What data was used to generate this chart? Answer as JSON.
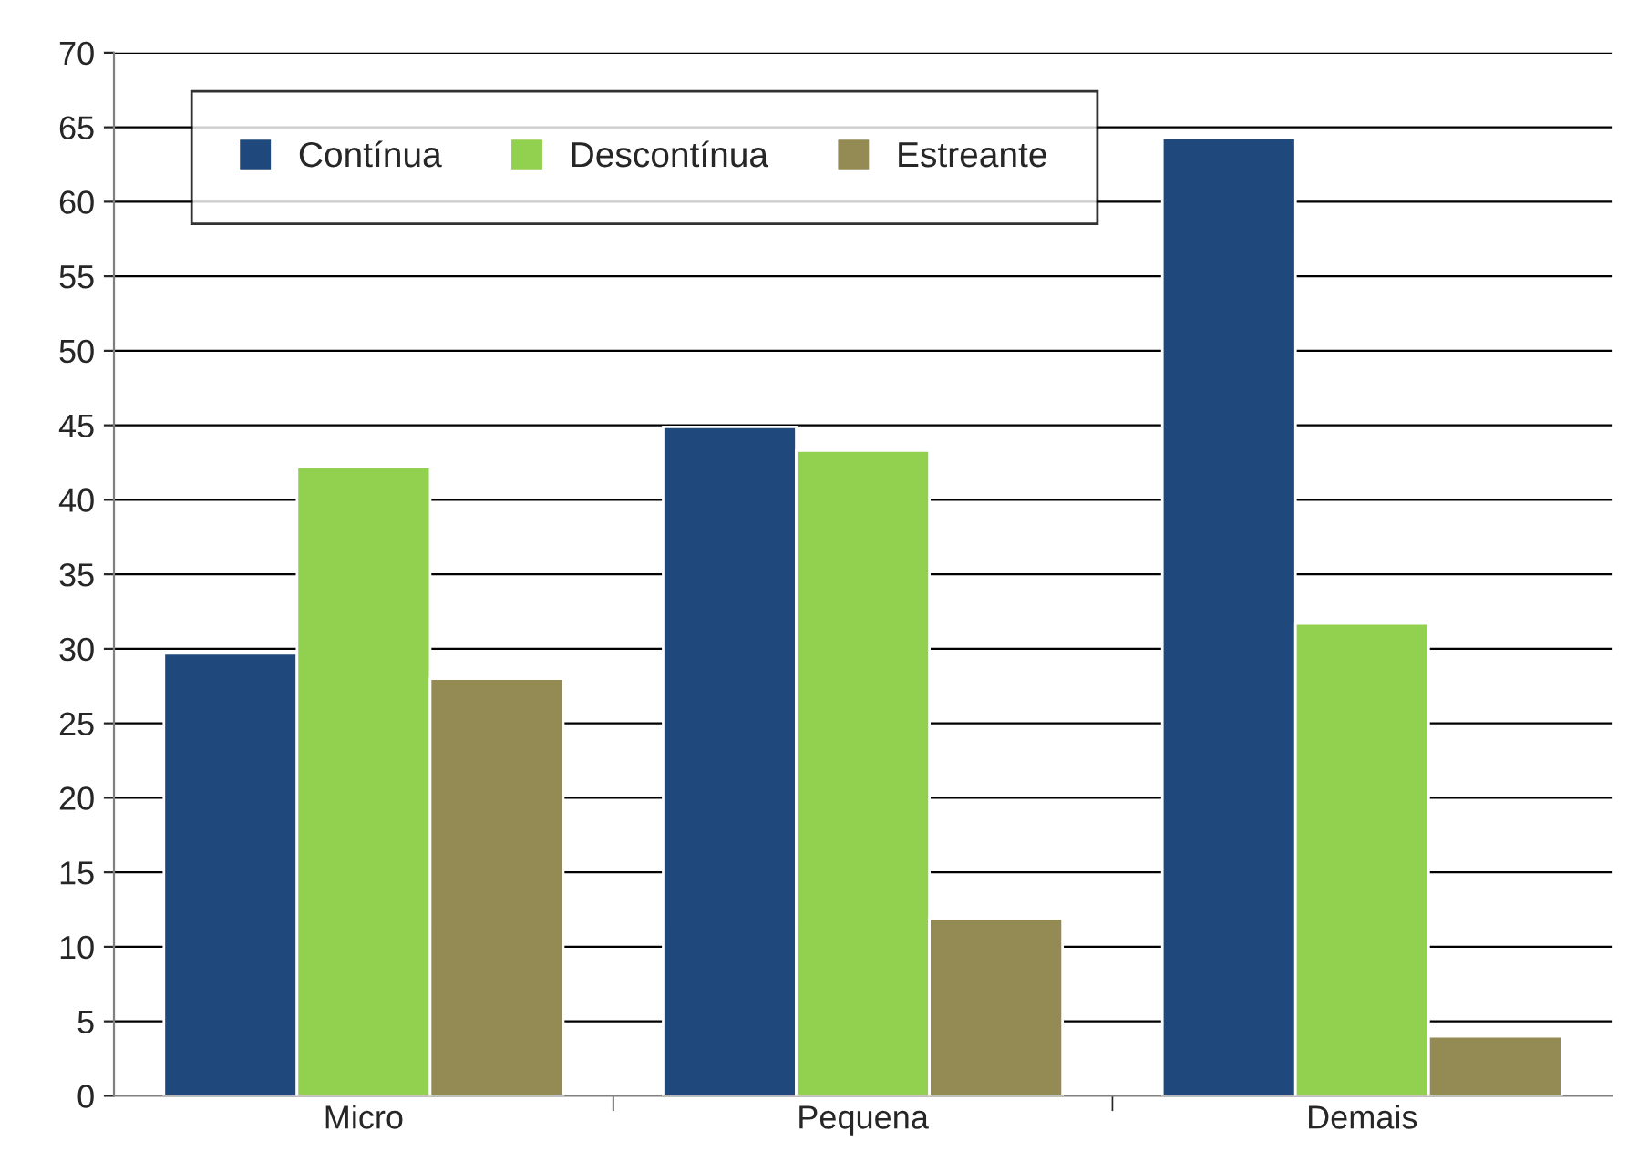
{
  "chart_data": {
    "type": "bar",
    "categories": [
      "Micro",
      "Pequena",
      "Demais"
    ],
    "series": [
      {
        "name": "Contínua",
        "color": "#1f497d",
        "values": [
          29.7,
          44.9,
          64.3
        ]
      },
      {
        "name": "Descontínua",
        "color": "#92d050",
        "values": [
          42.2,
          43.3,
          31.7
        ]
      },
      {
        "name": "Estreante",
        "color": "#948a54",
        "values": [
          28.0,
          11.9,
          4.0
        ]
      }
    ],
    "ylim": [
      0,
      70
    ],
    "yticks": [
      0,
      5,
      10,
      15,
      20,
      25,
      30,
      35,
      40,
      45,
      50,
      55,
      60,
      65,
      70
    ],
    "grid": "y",
    "legend": "top left"
  }
}
